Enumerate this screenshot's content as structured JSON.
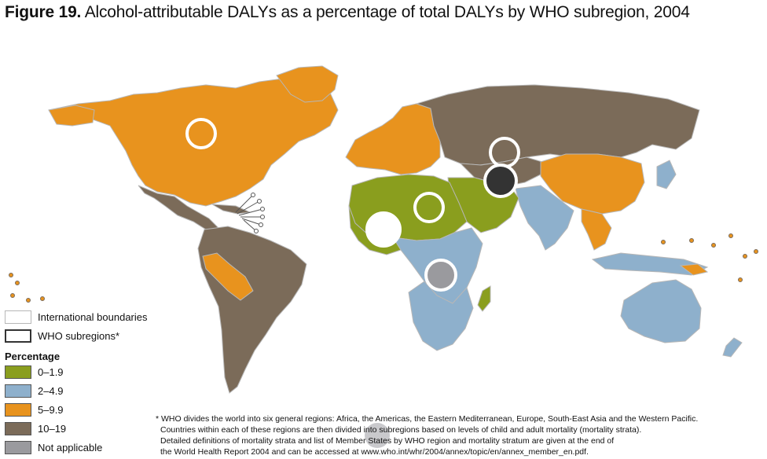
{
  "title": {
    "bold": "Figure 19.",
    "text": "Alcohol-attributable DALYs as a percentage of total DALYs by WHO subregion, 2004"
  },
  "colors": {
    "green": "#8a9e1e",
    "blue": "#8eb0cc",
    "orange": "#e8931e",
    "brown": "#7b6b59",
    "grey": "#9a9a9e",
    "ocean": "#ffffff",
    "boundary": "#b7b7b7"
  },
  "legend": {
    "international_boundaries": "International boundaries",
    "who_subregions": "WHO subregions*",
    "heading": "Percentage",
    "items": [
      {
        "label": "0–1.9",
        "color": "#8a9e1e"
      },
      {
        "label": "2–4.9",
        "color": "#8eb0cc"
      },
      {
        "label": "5–9.9",
        "color": "#e8931e"
      },
      {
        "label": "10–19",
        "color": "#7b6b59"
      },
      {
        "label": "Not applicable",
        "color": "#9a9a9e"
      }
    ]
  },
  "footnote": {
    "lines": [
      "* WHO divides the world into six general regions: Africa, the Americas, the Eastern Mediterranean, Europe, South-East Asia and the Western Pacific.",
      "Countries within each of these regions are then divided into subregions based on levels of child and adult mortality (mortality strata).",
      "Detailed definitions of mortality strata and list of Member States by WHO region and mortality stratum are given at the end of",
      "the World Health Report 2004 and can be accessed at www.who.int/whr/2004/annex/topic/en/annex_member_en.pdf."
    ]
  }
}
